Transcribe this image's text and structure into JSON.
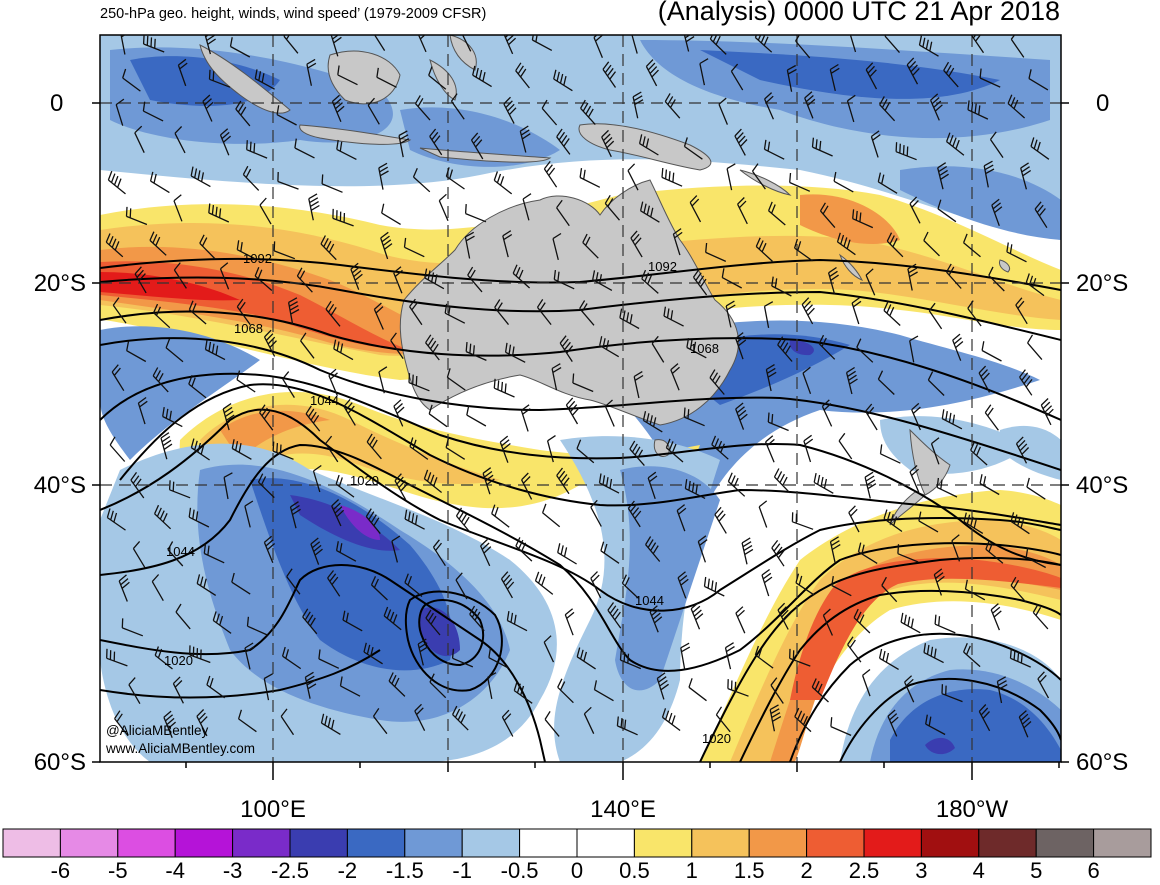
{
  "header": {
    "left_title": "250-hPa geo. height, winds, wind speed’ (1979-2009 CFSR)",
    "right_title": "(Analysis) 0000 UTC 21 Apr 2018"
  },
  "axes": {
    "lat_labels_left": [
      "0",
      "20°S",
      "40°S",
      "60°S"
    ],
    "lat_labels_right": [
      "0",
      "20°S",
      "40°S",
      "60°S"
    ],
    "lon_labels": [
      "100°E",
      "140°E",
      "180°W"
    ]
  },
  "contour_labels": [
    "1092",
    "1092",
    "1068",
    "1068",
    "1044",
    "1044",
    "1044",
    "1020",
    "1020",
    "1020"
  ],
  "credits": {
    "handle": "@AliciaMBentley",
    "website": "www.AliciaMBentley.com"
  },
  "colorbar": {
    "labels": [
      "-6",
      "-5",
      "-4",
      "-3",
      "-2.5",
      "-2",
      "-1.5",
      "-1",
      "-0.5",
      "0",
      "0.5",
      "1",
      "1.5",
      "2",
      "2.5",
      "3",
      "4",
      "5",
      "6"
    ],
    "colors": [
      "#eebde6",
      "#e68ae6",
      "#dc4ee2",
      "#b513d8",
      "#7a2bc9",
      "#3a3db0",
      "#3a69c2",
      "#6f99d6",
      "#a5c8e6",
      "#ffffff",
      "#ffffff",
      "#f9e56a",
      "#f5c25b",
      "#f29848",
      "#ee5d33",
      "#e31b1a",
      "#a10f10",
      "#6e2a2a",
      "#6d6363",
      "#a89c9c"
    ]
  },
  "map_colors": {
    "land": "#c8c8c8",
    "coast": "#555555",
    "contour": "#000000",
    "grid": "#333333"
  }
}
